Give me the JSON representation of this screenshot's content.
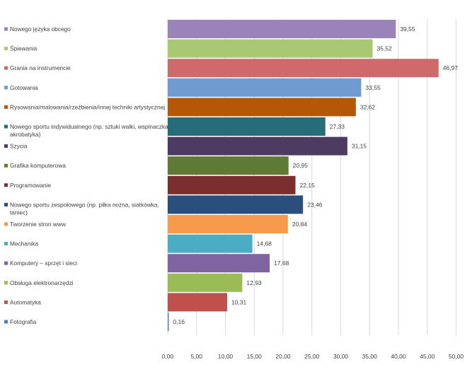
{
  "chart_data": {
    "type": "bar",
    "orientation": "horizontal",
    "title": "",
    "xlabel": "",
    "ylabel": "",
    "xlim": [
      0,
      50
    ],
    "xticks": [
      "0,00",
      "5,00",
      "10,00",
      "15,00",
      "20,00",
      "25,00",
      "30,00",
      "35,00",
      "40,00",
      "45,00",
      "50,00"
    ],
    "grid": true,
    "legend": "left",
    "categories": [
      "Nowego języka obcego",
      "Śpiewania",
      "Grania na instrumencie",
      "Gotowania",
      "Rysowania/malowania/rzeźbienia/innej techniki artystycznej",
      "Nowego sportu indywidualnego (np. sztuki walki, wspinaczka, akrobatyka)",
      "Szycia",
      "Grafika komputerowa",
      "Programowanie",
      "Nowego sportu zespołowego (np. piłka nożna, siatkówka, taniec)",
      "Tworzenie stron www",
      "Mechanika",
      "Komputery – sprzęt i sieci",
      "Obsługa elektronarzędzi",
      "Automatyka",
      "Fotografia"
    ],
    "cat_lines": [
      [
        "Nowego języka obcego"
      ],
      [
        "Śpiewania"
      ],
      [
        "Grania na instrumencie"
      ],
      [
        "Gotowania"
      ],
      [
        "Rysowania/malowania/rzeźbienia/innej techniki artystycznej"
      ],
      [
        "Nowego sportu indywidualnego (np. sztuki walki, wspinaczka,",
        "akrobatyka)"
      ],
      [
        "Szycia"
      ],
      [
        "Grafika komputerowa"
      ],
      [
        "Programowanie"
      ],
      [
        "Nowego sportu zespołowego (np. piłka nożna, siatkówka,",
        "taniec)"
      ],
      [
        "Tworzenie stron www"
      ],
      [
        "Mechanika"
      ],
      [
        "Komputery – sprzęt i sieci"
      ],
      [
        "Obsługa elektronarzędzi"
      ],
      [
        "Automatyka"
      ],
      [
        "Fotografia"
      ]
    ],
    "values": [
      39.55,
      35.52,
      46.97,
      33.55,
      32.62,
      27.33,
      31.15,
      20.95,
      22.15,
      23.46,
      20.84,
      14.68,
      17.68,
      12.93,
      10.31,
      0.16
    ],
    "value_labels": [
      "39,55",
      "35,52",
      "46,97",
      "33,55",
      "32,62",
      "27,33",
      "31,15",
      "20,95",
      "22,15",
      "23,46",
      "20,84",
      "14,68",
      "17,68",
      "12,93",
      "10,31",
      "0,16"
    ],
    "colors": [
      "#9A83B9",
      "#A9C872",
      "#D06A6A",
      "#6F9BD1",
      "#B65708",
      "#256D78",
      "#4E3B61",
      "#5E7A34",
      "#7A2E2E",
      "#2B4F7C",
      "#F79A4C",
      "#4BACC6",
      "#8064A2",
      "#9BBB59",
      "#C0504D",
      "#4F81BD"
    ]
  }
}
